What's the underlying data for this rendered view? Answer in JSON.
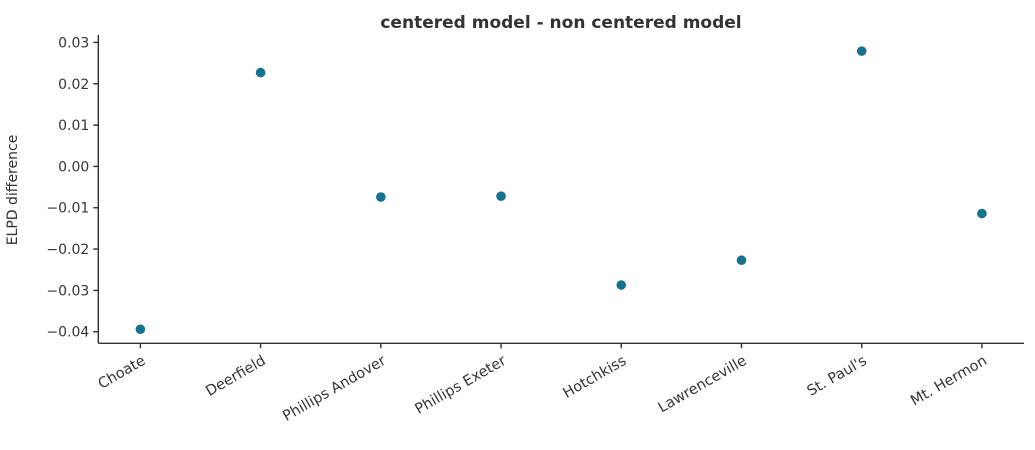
{
  "figure": {
    "background": "#ffffff"
  },
  "chart_data": {
    "type": "scatter",
    "title": "centered model - non centered model",
    "xlabel": "",
    "ylabel": "ELPD difference",
    "categories": [
      "Choate",
      "Deerfield",
      "Phillips Andover",
      "Phillips Exeter",
      "Hotchkiss",
      "Lawrenceville",
      "St. Paul's",
      "Mt. Hermon"
    ],
    "values": [
      -0.0394,
      0.0227,
      -0.0074,
      -0.0072,
      -0.0287,
      -0.0227,
      0.0279,
      -0.0114
    ],
    "yticks": [
      0.03,
      0.02,
      0.01,
      0.0,
      -0.01,
      -0.02,
      -0.03,
      -0.04
    ],
    "ytick_labels": [
      "0.03",
      "0.02",
      "0.01",
      "0.00",
      "−0.01",
      "−0.02",
      "−0.03",
      "−0.04"
    ],
    "ylim": [
      -0.0428,
      0.0318
    ],
    "grid": false,
    "legend": false,
    "marker_color": "#17728f",
    "axis_color": "#303030",
    "text_color": "#363636",
    "background": "#ffffff",
    "x_tick_rotation_deg": 30
  }
}
